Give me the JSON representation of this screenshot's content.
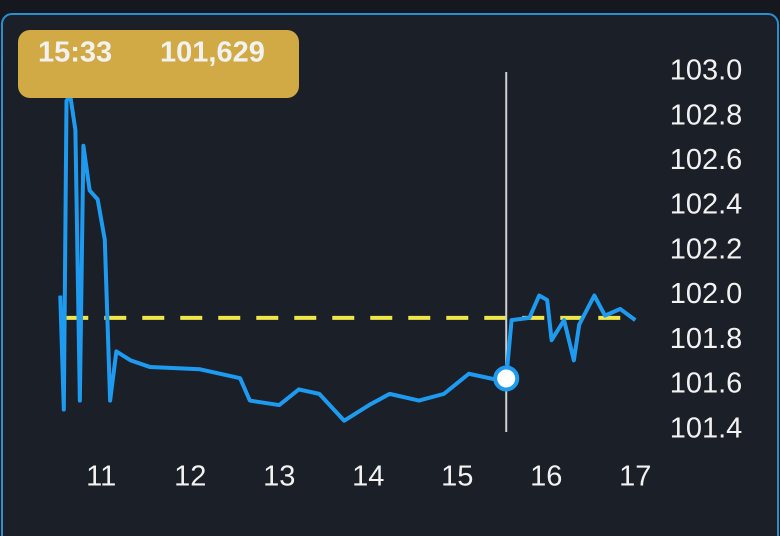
{
  "chart_data": {
    "type": "line",
    "tooltip": {
      "time": "15:33",
      "value": "101,629"
    },
    "x": [
      10.54,
      10.58,
      10.61,
      10.65,
      10.71,
      10.76,
      10.8,
      10.87,
      10.96,
      11.04,
      11.1,
      11.17,
      11.33,
      11.55,
      12.11,
      12.56,
      12.67,
      13.0,
      13.22,
      13.45,
      13.73,
      14.01,
      14.24,
      14.57,
      14.85,
      15.13,
      15.48,
      15.55,
      15.61,
      15.81,
      15.92,
      16.01,
      16.06,
      16.2,
      16.31,
      16.37,
      16.54,
      16.66,
      16.83,
      17.0
    ],
    "series": [
      {
        "color": "#1e9bf0",
        "values": [
          102.0,
          101.49,
          102.87,
          102.9,
          102.74,
          101.53,
          102.67,
          102.47,
          102.43,
          102.25,
          101.53,
          101.75,
          101.71,
          101.68,
          101.67,
          101.63,
          101.53,
          101.51,
          101.58,
          101.56,
          101.44,
          101.51,
          101.56,
          101.53,
          101.56,
          101.65,
          101.62,
          101.629,
          101.89,
          101.9,
          102.0,
          101.98,
          101.8,
          101.89,
          101.71,
          101.87,
          102.0,
          101.91,
          101.94,
          101.89
        ]
      }
    ],
    "reference_line": {
      "value": 101.9,
      "color": "#f0e64a"
    },
    "crosshair_x": 15.55,
    "xlim": [
      10.2,
      17.3
    ],
    "xticks": [
      11,
      12,
      13,
      14,
      15,
      16,
      17
    ],
    "ylim": [
      101.3,
      103.1
    ],
    "yticks": [
      {
        "value": 103.0,
        "label": "103.0"
      },
      102.8,
      102.6,
      102.4,
      102.2,
      {
        "value": 102,
        "label": "102.0"
      },
      101.8,
      101.6,
      101.4
    ]
  }
}
